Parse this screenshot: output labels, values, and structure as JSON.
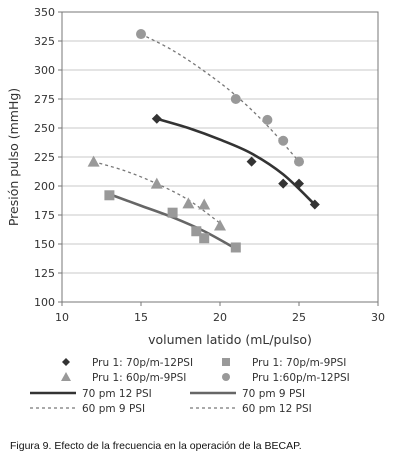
{
  "chart_data": {
    "type": "scatter",
    "xlabel": "volumen latido  (mL/pulso)",
    "ylabel": "Presión pulso (mmHg)",
    "xlim": [
      10,
      30
    ],
    "ylim": [
      100,
      350
    ],
    "xticks": [
      10,
      15,
      20,
      25,
      30
    ],
    "yticks": [
      100,
      125,
      150,
      175,
      200,
      225,
      250,
      275,
      300,
      325,
      350
    ],
    "grid": "horizontal",
    "legend_position": "bottom",
    "colors": {
      "dark": "#333333",
      "light": "#999999",
      "axis": "#777777",
      "grid": "#c8c8c8"
    },
    "series": [
      {
        "name": "Pru 1: 70p/m-12PSI",
        "marker": "diamond",
        "color": "#333333",
        "x": [
          16,
          22,
          24,
          25,
          26
        ],
        "y": [
          258,
          221,
          202,
          202,
          184
        ]
      },
      {
        "name": "Pru 1: 70p/m-9PSI",
        "marker": "square",
        "color": "#999999",
        "x": [
          13,
          17,
          18.5,
          19,
          21
        ],
        "y": [
          192,
          177,
          161,
          155,
          147
        ]
      },
      {
        "name": "Pru 1: 60p/m-9PSI",
        "marker": "triangle",
        "color": "#999999",
        "x": [
          12,
          16,
          18,
          19,
          20
        ],
        "y": [
          221,
          202,
          185,
          184,
          166
        ]
      },
      {
        "name": "Pru 1:60p/m-12PSI",
        "marker": "circle",
        "color": "#999999",
        "x": [
          15,
          21,
          23,
          24,
          25
        ],
        "y": [
          331,
          275,
          257,
          239,
          221
        ]
      }
    ],
    "trendlines": [
      {
        "name": "70 pm 12 PSI",
        "style": "solid",
        "color": "#333333",
        "x": [
          16,
          18,
          20,
          22,
          24,
          26
        ],
        "y": [
          258,
          250,
          240,
          228,
          210,
          184
        ]
      },
      {
        "name": "70 pm 9 PSI",
        "style": "solid",
        "color": "#666666",
        "x": [
          13,
          15,
          17,
          19,
          21
        ],
        "y": [
          193,
          183,
          173,
          161,
          146
        ]
      },
      {
        "name": "60 pm 9 PSI",
        "style": "dashed",
        "color": "#777777",
        "x": [
          12,
          14,
          16,
          18,
          20
        ],
        "y": [
          221,
          213,
          202,
          188,
          168
        ]
      },
      {
        "name": "60 pm 12 PSI",
        "style": "dashed",
        "color": "#777777",
        "x": [
          15,
          17,
          19,
          21,
          23,
          25
        ],
        "y": [
          331,
          317,
          299,
          278,
          252,
          221
        ]
      }
    ]
  },
  "caption": "Figura 9.  Efecto de la frecuencia en la operación de la BECAP."
}
